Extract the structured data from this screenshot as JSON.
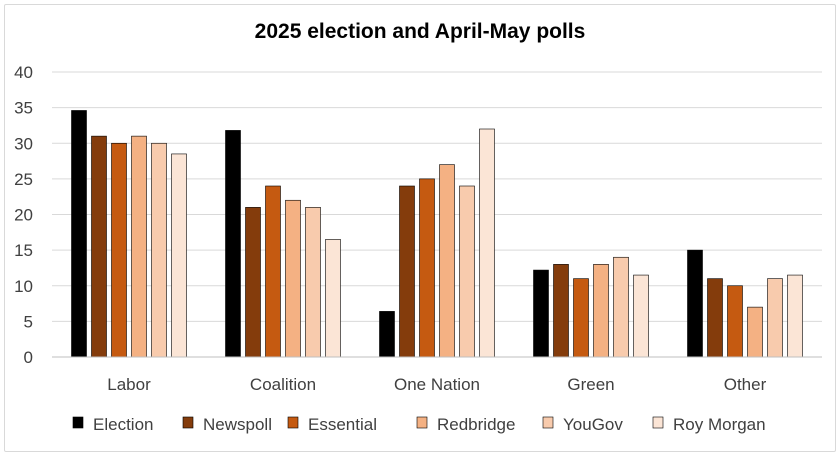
{
  "chart_data": {
    "type": "bar",
    "title": "2025 election and April-May polls",
    "xlabel": "",
    "ylabel": "",
    "ylim": [
      0,
      40
    ],
    "yticks": [
      0,
      5,
      10,
      15,
      20,
      25,
      30,
      35,
      40
    ],
    "grid": true,
    "legend_position": "bottom",
    "categories": [
      "Labor",
      "Coalition",
      "One Nation",
      "Green",
      "Other"
    ],
    "series": [
      {
        "name": "Election",
        "color": "#000000",
        "values": [
          34.6,
          31.8,
          6.4,
          12.2,
          15.0
        ]
      },
      {
        "name": "Newspoll",
        "color": "#843c0c",
        "values": [
          31,
          21,
          24,
          13,
          11
        ]
      },
      {
        "name": "Essential",
        "color": "#c55a11",
        "values": [
          30,
          24,
          25,
          11,
          10
        ]
      },
      {
        "name": "Redbridge",
        "color": "#f4b183",
        "values": [
          31,
          22,
          27,
          13,
          7
        ]
      },
      {
        "name": "YouGov",
        "color": "#f8cbad",
        "values": [
          30,
          21,
          24,
          14,
          11
        ]
      },
      {
        "name": "Roy Morgan",
        "color": "#fbe5d6",
        "values": [
          28.5,
          16.5,
          32,
          11.5,
          11.5
        ]
      }
    ]
  }
}
